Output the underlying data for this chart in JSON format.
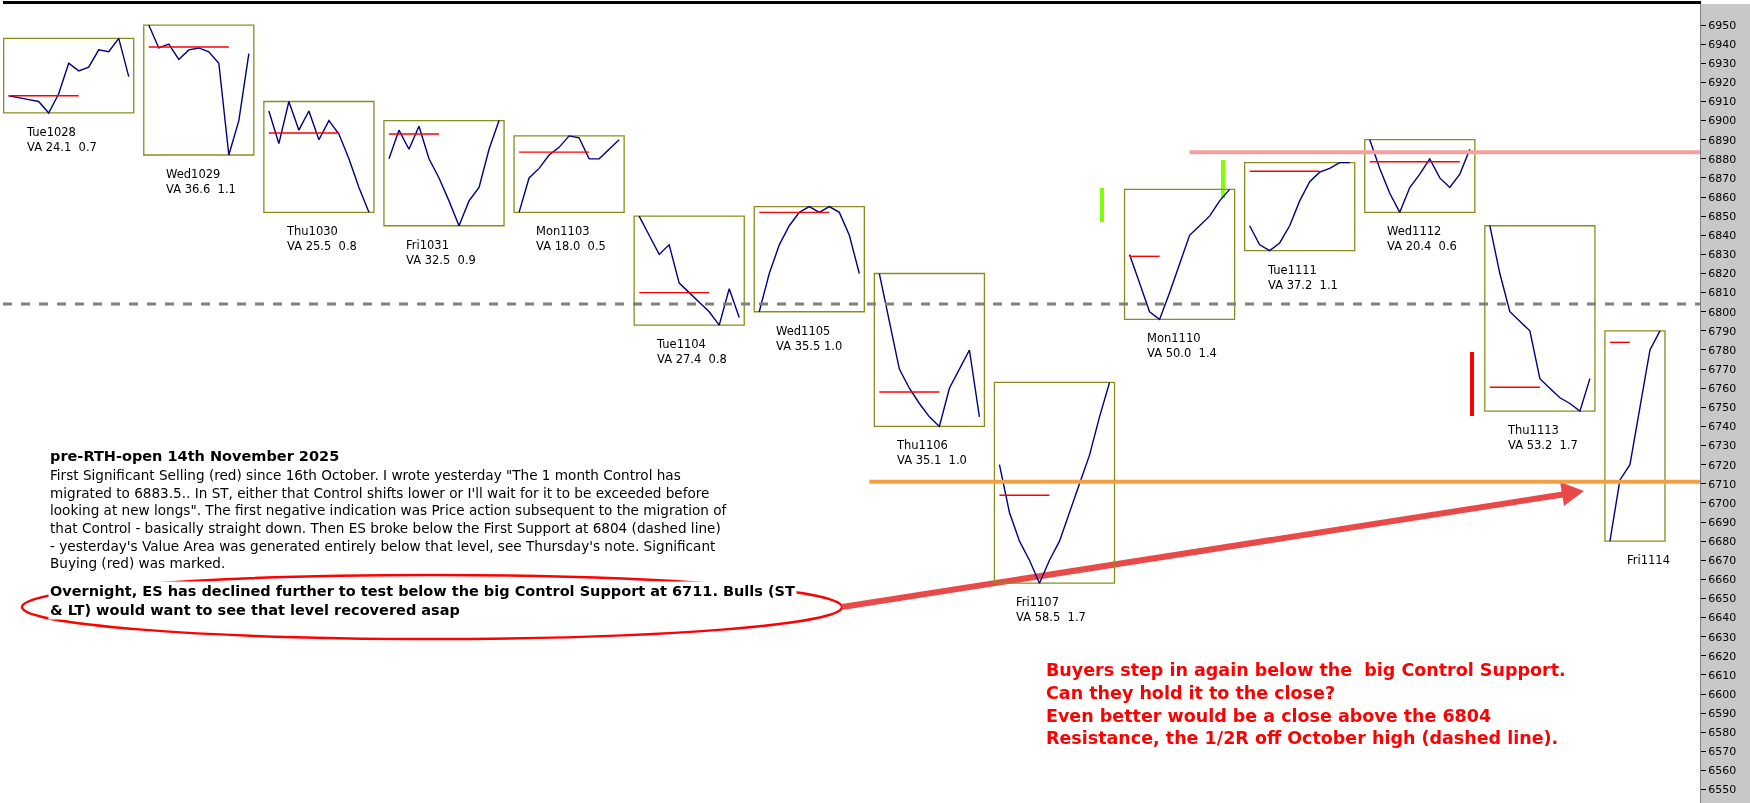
{
  "chart_data": {
    "type": "line",
    "ylim": [
      6543,
      6961
    ],
    "tick_labels": "y",
    "categories": [
      null,
      null,
      null,
      null,
      null,
      null,
      null,
      null,
      null,
      null,
      null,
      null,
      null,
      null,
      null,
      null,
      null,
      null,
      null,
      null,
      null,
      null,
      null,
      null,
      null,
      null,
      null,
      null,
      null,
      null,
      null,
      null,
      null,
      null,
      null,
      null,
      null,
      null,
      null,
      null,
      null,
      null,
      null,
      null,
      null,
      null,
      null,
      null,
      null,
      null,
      null,
      null,
      null,
      null,
      null,
      null,
      null,
      null,
      null,
      null,
      null,
      null,
      null,
      null,
      null,
      null,
      null,
      null,
      null,
      null,
      null,
      null,
      null,
      null,
      null,
      null,
      null,
      null,
      null,
      null,
      null,
      null,
      null,
      null,
      null,
      null,
      null,
      null,
      null,
      null,
      null,
      null,
      null,
      null,
      null,
      null,
      null,
      null,
      null,
      null,
      null,
      null,
      null,
      null,
      null,
      null,
      null,
      null,
      null,
      null,
      null,
      null,
      null,
      null,
      null,
      null,
      null,
      null,
      null,
      null,
      null,
      null,
      null,
      null,
      null,
      null,
      null,
      null,
      null,
      null,
      null,
      null,
      null,
      null,
      null,
      null,
      null,
      null,
      null,
      null,
      null,
      null,
      null,
      null,
      null,
      null,
      null,
      null,
      null,
      null,
      null,
      null,
      null,
      null,
      null,
      null,
      null,
      null,
      null,
      null,
      null,
      null,
      null,
      null,
      null,
      null,
      null,
      null,
      null,
      null
    ],
    "yticks": [
      6550,
      6560,
      6570,
      6580,
      6590,
      6600,
      6610,
      6620,
      6630,
      6640,
      6650,
      6660,
      6670,
      6680,
      6690,
      6700,
      6710,
      6720,
      6730,
      6740,
      6750,
      6760,
      6770,
      6780,
      6790,
      6800,
      6810,
      6820,
      6830,
      6840,
      6850,
      6860,
      6870,
      6880,
      6890,
      6900,
      6910,
      6920,
      6930,
      6940,
      6950
    ],
    "ref_lines": [
      {
        "axis": "y",
        "value": 6804,
        "color": "#808080",
        "line_style": "dashed"
      }
    ],
    "series": [
      {
        "color": "#000080",
        "values": [
          6913,
          6912,
          6911,
          6910,
          6904,
          6914,
          6930,
          6926,
          6928,
          6937,
          6936,
          6943,
          6923,
          null,
          6950,
          6938,
          6940,
          6932,
          6937,
          6938,
          6936,
          6930,
          6882,
          6900,
          6935,
          null,
          6905,
          6888,
          6910,
          6895,
          6905,
          6890,
          6900,
          6893,
          6880,
          6865,
          6852,
          null,
          6880,
          6895,
          6885,
          6897,
          6880,
          6870,
          6858,
          6845,
          6858,
          6865,
          6885,
          6900,
          null,
          6852,
          6870,
          6875,
          6882,
          6886,
          6892,
          6891,
          6880,
          6880,
          6885,
          6890,
          null,
          6850,
          6840,
          6830,
          6835,
          6815,
          6810,
          6805,
          6800,
          6793,
          6812,
          6797,
          null,
          6800,
          6820,
          6835,
          6845,
          6852,
          6855,
          6852,
          6855,
          6852,
          6840,
          6820,
          null,
          6820,
          6795,
          6770,
          6760,
          6752,
          6745,
          6740,
          6760,
          6770,
          6780,
          6745,
          null,
          6720,
          6695,
          6680,
          6670,
          6658,
          6670,
          6680,
          6695,
          6710,
          6725,
          6745,
          6763,
          null,
          6830,
          6815,
          6800,
          6796,
          6810,
          6825,
          6840,
          6845,
          6850,
          6858,
          6864,
          null,
          6845,
          6835,
          6832,
          6836,
          6845,
          6858,
          6868,
          6873,
          6875,
          6878,
          6878,
          null,
          6890,
          6875,
          6862,
          6852,
          6865,
          6872,
          6880,
          6870,
          6865,
          6872,
          6885,
          null,
          6845,
          6820,
          6800,
          6795,
          6790,
          6765,
          6760,
          6755,
          6752,
          6748,
          6765,
          null,
          6680,
          6712,
          6720,
          6750,
          6780,
          6790,
          null,
          null,
          null,
          null
        ]
      },
      {
        "color": "#ff0000",
        "values": [
          6913,
          6913,
          6913,
          6913,
          6913,
          6913,
          6913,
          6913,
          null,
          null,
          null,
          null,
          null,
          null,
          6938.5,
          6938.5,
          6938.5,
          6938.5,
          6938.5,
          6938.5,
          6938.5,
          6938.5,
          6938.5,
          null,
          null,
          null,
          6893.5,
          6893.5,
          6893.5,
          6893.5,
          6893.5,
          6893.5,
          6893.5,
          6893.5,
          null,
          null,
          null,
          null,
          6893,
          6893,
          6893,
          6893,
          6893,
          6893,
          null,
          null,
          null,
          null,
          null,
          null,
          null,
          6883.5,
          6883.5,
          6883.5,
          6883.5,
          6883.5,
          6883.5,
          6883.5,
          6883.5,
          null,
          null,
          null,
          null,
          6810,
          6810,
          6810,
          6810,
          6810,
          6810,
          6810,
          6810,
          null,
          null,
          null,
          null,
          6852,
          6852,
          6852,
          6852,
          6852,
          6852,
          6852,
          6852,
          null,
          null,
          null,
          null,
          6758,
          6758,
          6758,
          6758,
          6758,
          6758,
          6758,
          null,
          null,
          null,
          null,
          null,
          6704,
          6704,
          6704,
          6704,
          6704,
          6704,
          null,
          null,
          null,
          null,
          null,
          null,
          null,
          6829,
          6829,
          6829,
          6829,
          null,
          null,
          null,
          null,
          null,
          null,
          null,
          null,
          6873.5,
          6873.5,
          6873.5,
          6873.5,
          6873.5,
          6873.5,
          6873.5,
          6873.5,
          null,
          null,
          null,
          null,
          6878.5,
          6878.5,
          6878.5,
          6878.5,
          6878.5,
          6878.5,
          6878.5,
          6878.5,
          6878.5,
          6878.5,
          null,
          null,
          6760.5,
          6760.5,
          6760.5,
          6760.5,
          6760.5,
          6760.5,
          null,
          null,
          null,
          null,
          null,
          null,
          6784,
          6784,
          6784,
          null,
          null,
          null,
          null,
          null,
          null,
          null
        ]
      },
      {
        "color": "#f4a0a0",
        "values": [
          null,
          null,
          null,
          null,
          null,
          null,
          null,
          null,
          null,
          null,
          null,
          null,
          null,
          null,
          null,
          null,
          null,
          null,
          null,
          null,
          null,
          null,
          null,
          null,
          null,
          null,
          null,
          null,
          null,
          null,
          null,
          null,
          null,
          null,
          null,
          null,
          null,
          null,
          null,
          null,
          null,
          null,
          null,
          null,
          null,
          null,
          null,
          null,
          null,
          null,
          null,
          null,
          null,
          null,
          null,
          null,
          null,
          null,
          null,
          null,
          null,
          null,
          null,
          null,
          null,
          null,
          null,
          null,
          null,
          null,
          null,
          null,
          null,
          null,
          null,
          null,
          null,
          null,
          null,
          null,
          null,
          null,
          null,
          null,
          null,
          null,
          null,
          null,
          null,
          null,
          null,
          null,
          null,
          null,
          null,
          null,
          null,
          null,
          null,
          null,
          null,
          null,
          null,
          null,
          null,
          null,
          null,
          null,
          null,
          null,
          null,
          null,
          null,
          null,
          null,
          null,
          null,
          null,
          6883.5,
          6883.5,
          6883.5,
          6883.5,
          6883.5,
          6883.5,
          6883.5,
          6883.5,
          6883.5,
          6883.5,
          6883.5,
          6883.5,
          6883.5,
          6883.5,
          6883.5,
          6883.5,
          6883.5,
          6883.5,
          6883.5,
          6883.5,
          6883.5,
          6883.5,
          6883.5,
          6883.5,
          6883.5,
          6883.5,
          6883.5,
          6883.5,
          6883.5,
          6883.5,
          6883.5,
          6883.5,
          6883.5,
          6883.5,
          6883.5,
          6883.5,
          6883.5,
          6883.5,
          6883.5,
          6883.5,
          6883.5,
          6883.5,
          6883.5,
          6883.5,
          6883.5,
          6883.5,
          6883.5,
          6883.5,
          6883.5,
          6883.5,
          6883.5,
          6883.5
        ]
      },
      {
        "color": "#f5a040",
        "values": [
          null,
          null,
          null,
          null,
          null,
          null,
          null,
          null,
          null,
          null,
          null,
          null,
          null,
          null,
          null,
          null,
          null,
          null,
          null,
          null,
          null,
          null,
          null,
          null,
          null,
          null,
          null,
          null,
          null,
          null,
          null,
          null,
          null,
          null,
          null,
          null,
          null,
          null,
          null,
          null,
          null,
          null,
          null,
          null,
          null,
          null,
          null,
          null,
          null,
          null,
          null,
          null,
          null,
          null,
          null,
          null,
          null,
          null,
          null,
          null,
          null,
          null,
          null,
          null,
          null,
          null,
          null,
          null,
          null,
          null,
          null,
          null,
          null,
          null,
          null,
          null,
          null,
          null,
          null,
          null,
          null,
          null,
          null,
          null,
          null,
          null,
          6711,
          6711,
          6711,
          6711,
          6711,
          6711,
          6711,
          6711,
          6711,
          6711,
          6711,
          6711,
          6711,
          6711,
          6711,
          6711,
          6711,
          6711,
          6711,
          6711,
          6711,
          6711,
          6711,
          6711,
          6711,
          6711,
          6711,
          6711,
          6711,
          6711,
          6711,
          6711,
          6711,
          6711,
          6711,
          6711,
          6711,
          6711,
          6711,
          6711,
          6711,
          6711,
          6711,
          6711,
          6711,
          6711,
          6711,
          6711,
          6711,
          6711,
          6711,
          6711,
          6711,
          6711,
          6711,
          6711,
          6711,
          6711,
          6711,
          6711,
          6711,
          6711,
          6711,
          6711,
          6711,
          6711,
          6711,
          6711,
          6711,
          6711,
          6711,
          6711,
          6711,
          6711,
          6711,
          6711,
          6711,
          6711,
          6711,
          6711,
          6711,
          6711,
          6711,
          6711
        ]
      }
    ],
    "annotations": [
      "Tue1028\nVA 24.1  0.7",
      "Wed1029\nVA 36.6  1.1",
      "Thu1030\nVA 25.5  0.8",
      "Fri1031\nVA 32.5  0.9",
      "Mon1103\nVA 18.0  0.5",
      "Tue1104\nVA 27.4  0.8",
      "Wed1105\nVA 35.5 1.0",
      "Thu1106\nVA 35.1  1.0",
      "Fri1107\nVA 58.5  1.7",
      "Mon1110\nVA 50.0  1.4",
      "Tue1111\nVA 37.2  1.1",
      "Wed1112\nVA 20.4  0.6",
      "Thu1113\nVA 53.2  1.7",
      "Fri1114",
      "pre-RTH-open 14th November 2025",
      "First Significant Selling (red) since 16th October. I wrote yesterday \"The 1 month Control has\nmigrated to 6883.5.. In ST, either that Control shifts lower or I'll wait for it to be exceeded before\nlooking at new longs\". The first negative indication was Price action subsequent to the migration of\nthat Control - basically straight down. Then ES broke below the First Support at 6804 (dashed line)\n- yesterday's Value Area was generated entirely below that level, see Thursday's note. Significant\nBuying (red) was marked.",
      "Overnight, ES has declined further to test below the big Control Support at 6711. Bulls (ST\n& LT) would want to see that level recovered asap",
      "Buyers step in again below the  big Control Support.\nCan they hold it to the close?\nEven better would be a close above the 6804\nResistance, the 1/2R off October high (dashed line)."
    ]
  }
}
